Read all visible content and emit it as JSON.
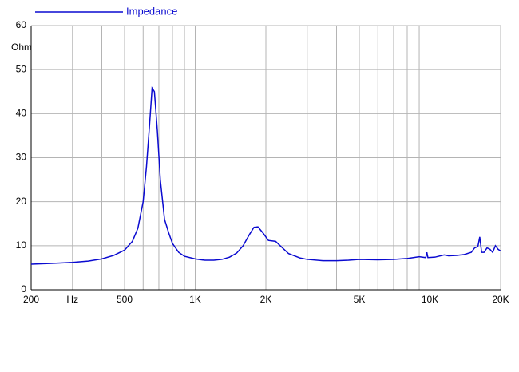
{
  "chart_data": {
    "type": "line",
    "y_label": "Ohm",
    "x": [
      200,
      250,
      300,
      350,
      400,
      450,
      500,
      540,
      570,
      600,
      620,
      640,
      655,
      670,
      690,
      710,
      740,
      770,
      800,
      850,
      900,
      1000,
      1100,
      1200,
      1300,
      1400,
      1500,
      1600,
      1700,
      1780,
      1850,
      1950,
      2050,
      2200,
      2300,
      2500,
      2800,
      3000,
      3500,
      4000,
      4500,
      5000,
      6000,
      7000,
      8000,
      9000,
      9600,
      9700,
      9800,
      10500,
      11500,
      12000,
      13000,
      14000,
      15000,
      15500,
      16000,
      16300,
      16600,
      17000,
      17500,
      18000,
      18500,
      19000,
      19500,
      20000
    ],
    "series": [
      {
        "name": "Impedance",
        "color": "#0a0ad0",
        "values": [
          5.8,
          6.0,
          6.2,
          6.5,
          7.0,
          7.8,
          9.0,
          11,
          14,
          20,
          28,
          38,
          45.8,
          45,
          36,
          25,
          16,
          13,
          10.5,
          8.5,
          7.6,
          7.0,
          6.7,
          6.7,
          6.9,
          7.4,
          8.3,
          10,
          12.5,
          14.2,
          14.3,
          12.8,
          11.2,
          11.0,
          10,
          8.2,
          7.2,
          6.9,
          6.6,
          6.6,
          6.7,
          6.9,
          6.8,
          6.9,
          7.1,
          7.5,
          7.3,
          8.5,
          7.3,
          7.4,
          7.9,
          7.7,
          7.8,
          8.0,
          8.5,
          9.5,
          9.8,
          12,
          8.5,
          8.5,
          9.5,
          9.2,
          8.5,
          10.0,
          9.2,
          8.8
        ]
      }
    ],
    "log_x": true,
    "xlim": [
      200,
      20000
    ],
    "xticks": [
      200,
      {
        "value": 300,
        "label": "Hz"
      },
      500,
      {
        "value": 1000,
        "label": "1K"
      },
      {
        "value": 2000,
        "label": "2K"
      },
      {
        "value": 5000,
        "label": "5K"
      },
      {
        "value": 10000,
        "label": "10K"
      },
      {
        "value": 20000,
        "label": "20K"
      }
    ],
    "xminorticks": [
      400,
      600,
      700,
      800,
      900,
      3000,
      4000,
      6000,
      7000,
      8000,
      9000
    ],
    "ylim": [
      0,
      60
    ],
    "yticks": [
      0,
      10,
      20,
      30,
      40,
      50,
      60
    ],
    "grid": true
  }
}
